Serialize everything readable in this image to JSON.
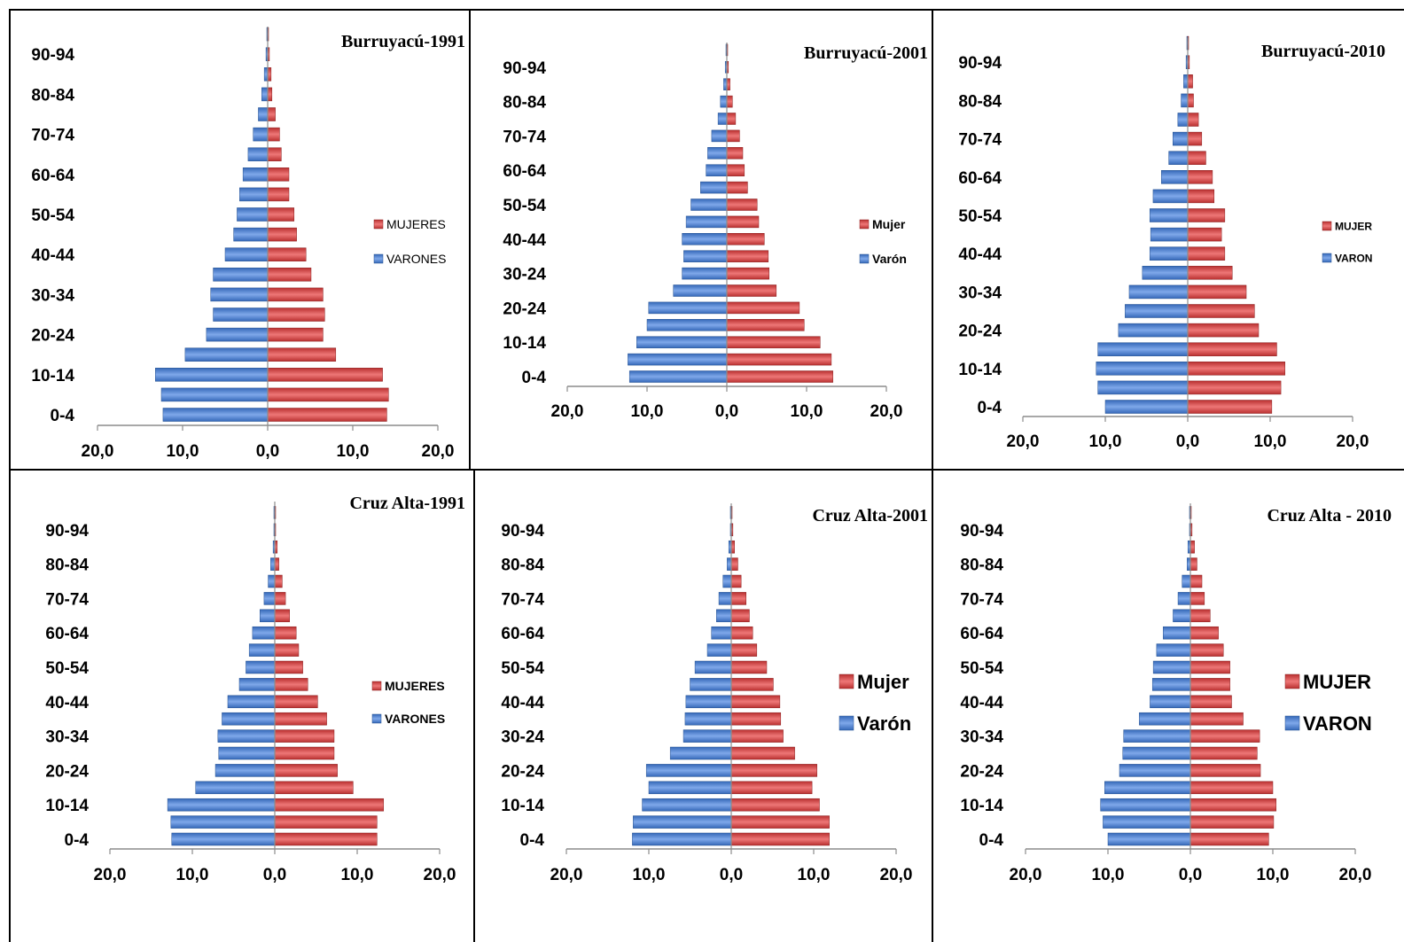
{
  "colors": {
    "male": "#4a7fd0",
    "female": "#d84b4b",
    "axis": "#8c8c8c",
    "frame": "#000000"
  },
  "chart_data": [
    {
      "type": "bar",
      "title": "Burruyacú-1991",
      "categories": [
        "0-4",
        "5-9",
        "10-14",
        "15-19",
        "20-24",
        "25-29",
        "30-34",
        "35-39",
        "40-44",
        "45-49",
        "50-54",
        "55-59",
        "60-64",
        "65-69",
        "70-74",
        "75-79",
        "80-84",
        "85-89",
        "90-94",
        "95+"
      ],
      "tick_labels": [
        "0-4",
        "10-14",
        "20-24",
        "30-34",
        "40-44",
        "50-54",
        "60-64",
        "70-74",
        "80-84",
        "90-94"
      ],
      "x_tick_labels": [
        "20,0",
        "10,0",
        "0,0",
        "10,0",
        "20,0"
      ],
      "xlim": [
        -20,
        20
      ],
      "legend_position": "right",
      "series": [
        {
          "name": "MUJERES",
          "values": [
            14.0,
            14.2,
            13.5,
            8.0,
            6.5,
            6.7,
            6.5,
            5.1,
            4.5,
            3.4,
            3.1,
            2.5,
            2.5,
            1.6,
            1.4,
            0.9,
            0.5,
            0.4,
            0.2,
            0.1
          ]
        },
        {
          "name": "VARONES",
          "values": [
            -12.3,
            -12.5,
            -13.2,
            -9.7,
            -7.2,
            -6.4,
            -6.7,
            -6.4,
            -5.0,
            -4.0,
            -3.6,
            -3.3,
            -2.9,
            -2.3,
            -1.7,
            -1.1,
            -0.7,
            -0.4,
            -0.2,
            -0.1
          ]
        }
      ]
    },
    {
      "type": "bar",
      "title": "Burruyacú-2001",
      "categories": [
        "0-4",
        "5-9",
        "10-14",
        "15-19",
        "20-24",
        "25-29",
        "30-24",
        "35-39",
        "40-44",
        "45-49",
        "50-54",
        "55-59",
        "60-64",
        "65-69",
        "70-74",
        "75-79",
        "80-84",
        "85-89",
        "90-94",
        "95+"
      ],
      "tick_labels": [
        "0-4",
        "10-14",
        "20-24",
        "30-24",
        "40-44",
        "50-54",
        "60-64",
        "70-74",
        "80-84",
        "90-94"
      ],
      "x_tick_labels": [
        "20,0",
        "10,0",
        "0,0",
        "10,0",
        "20,0"
      ],
      "xlim": [
        -20,
        20
      ],
      "legend_position": "right",
      "series": [
        {
          "name": "Mujer",
          "values": [
            13.3,
            13.1,
            11.7,
            9.7,
            9.1,
            6.2,
            5.3,
            5.2,
            4.7,
            4.0,
            3.8,
            2.6,
            2.2,
            2.0,
            1.6,
            1.1,
            0.7,
            0.4,
            0.2,
            0.1
          ]
        },
        {
          "name": "Varón",
          "values": [
            -12.2,
            -12.4,
            -11.3,
            -10.0,
            -9.8,
            -6.7,
            -5.6,
            -5.4,
            -5.6,
            -5.1,
            -4.5,
            -3.3,
            -2.6,
            -2.4,
            -1.9,
            -1.1,
            -0.8,
            -0.4,
            -0.2,
            -0.1
          ]
        }
      ]
    },
    {
      "type": "bar",
      "title": "Burruyacú-2010",
      "categories": [
        "0-4",
        "5-9",
        "10-14",
        "15-19",
        "20-24",
        "25-29",
        "30-34",
        "35-39",
        "40-44",
        "45-49",
        "50-54",
        "55-59",
        "60-64",
        "65-69",
        "70-74",
        "75-79",
        "80-84",
        "85-89",
        "90-94",
        "95+"
      ],
      "tick_labels": [
        "0-4",
        "10-14",
        "20-24",
        "30-34",
        "40-44",
        "50-54",
        "60-64",
        "70-74",
        "80-84",
        "90-94"
      ],
      "x_tick_labels": [
        "20,0",
        "10,0",
        "0,0",
        "10,0",
        "20,0"
      ],
      "xlim": [
        -20,
        20
      ],
      "legend_position": "right",
      "series": [
        {
          "name": "MUJER",
          "values": [
            10.2,
            11.3,
            11.8,
            10.8,
            8.6,
            8.1,
            7.1,
            5.4,
            4.5,
            4.1,
            4.5,
            3.2,
            3.0,
            2.2,
            1.7,
            1.3,
            0.7,
            0.6,
            0.2,
            0.1
          ]
        },
        {
          "name": "VARON",
          "values": [
            -10.0,
            -10.9,
            -11.1,
            -10.9,
            -8.4,
            -7.6,
            -7.1,
            -5.5,
            -4.6,
            -4.5,
            -4.6,
            -4.2,
            -3.2,
            -2.3,
            -1.8,
            -1.2,
            -0.8,
            -0.5,
            -0.2,
            -0.1
          ]
        }
      ]
    },
    {
      "type": "bar",
      "title": "Cruz Alta-1991",
      "categories": [
        "0-4",
        "5-9",
        "10-14",
        "15-19",
        "20-24",
        "25-29",
        "30-34",
        "35-39",
        "40-44",
        "45-49",
        "50-54",
        "55-59",
        "60-64",
        "65-69",
        "70-74",
        "75-79",
        "80-84",
        "85-89",
        "90-94",
        "95+"
      ],
      "tick_labels": [
        "0-4",
        "10-14",
        "20-24",
        "30-34",
        "40-44",
        "50-54",
        "60-64",
        "70-74",
        "80-84",
        "90-94"
      ],
      "x_tick_labels": [
        "20,0",
        "10,0",
        "0,0",
        "10,0",
        "20,0"
      ],
      "xlim": [
        -20,
        20
      ],
      "legend_position": "right",
      "series": [
        {
          "name": "MUJERES",
          "values": [
            12.4,
            12.4,
            13.2,
            9.5,
            7.6,
            7.2,
            7.2,
            6.3,
            5.2,
            4.0,
            3.4,
            2.9,
            2.6,
            1.8,
            1.3,
            0.9,
            0.5,
            0.3,
            0.1,
            0.1
          ]
        },
        {
          "name": "VARONES",
          "values": [
            -12.5,
            -12.6,
            -13.0,
            -9.6,
            -7.2,
            -6.8,
            -6.9,
            -6.4,
            -5.7,
            -4.3,
            -3.5,
            -3.1,
            -2.7,
            -1.8,
            -1.3,
            -0.8,
            -0.5,
            -0.2,
            -0.1,
            -0.1
          ]
        }
      ]
    },
    {
      "type": "bar",
      "title": "Cruz Alta-2001",
      "categories": [
        "0-4",
        "5-9",
        "10-14",
        "15-19",
        "20-24",
        "25-29",
        "30-24",
        "35-39",
        "40-44",
        "45-49",
        "50-54",
        "55-59",
        "60-64",
        "65-69",
        "70-74",
        "75-79",
        "80-84",
        "85-89",
        "90-94",
        "95+"
      ],
      "tick_labels": [
        "0-4",
        "10-14",
        "20-24",
        "30-24",
        "40-44",
        "50-54",
        "60-64",
        "70-74",
        "80-84",
        "90-94"
      ],
      "x_tick_labels": [
        "20,0",
        "10,0",
        "0,0",
        "10,0",
        "20,0"
      ],
      "xlim": [
        -20,
        20
      ],
      "legend_position": "right",
      "series": [
        {
          "name": "Mujer",
          "values": [
            11.9,
            11.9,
            10.7,
            9.8,
            10.4,
            7.7,
            6.3,
            6.0,
            5.9,
            5.1,
            4.3,
            3.1,
            2.6,
            2.2,
            1.8,
            1.2,
            0.8,
            0.4,
            0.2,
            0.1
          ]
        },
        {
          "name": "Varón",
          "values": [
            -12.0,
            -11.9,
            -10.8,
            -10.0,
            -10.3,
            -7.4,
            -5.8,
            -5.6,
            -5.5,
            -5.0,
            -4.4,
            -2.9,
            -2.4,
            -1.8,
            -1.5,
            -1.0,
            -0.5,
            -0.3,
            -0.1,
            -0.1
          ]
        }
      ]
    },
    {
      "type": "bar",
      "title": "Cruz Alta - 2010",
      "categories": [
        "0-4",
        "5-9",
        "10-14",
        "15-19",
        "20-24",
        "25-29",
        "30-34",
        "35-39",
        "40-44",
        "45-49",
        "50-54",
        "55-59",
        "60-64",
        "65-69",
        "70-74",
        "75-79",
        "80-84",
        "85-89",
        "90-94",
        "95+"
      ],
      "tick_labels": [
        "0-4",
        "10-14",
        "20-24",
        "30-34",
        "40-44",
        "50-54",
        "60-64",
        "70-74",
        "80-84",
        "90-94"
      ],
      "x_tick_labels": [
        "20,0",
        "10,0",
        "0,0",
        "10,0",
        "20,0"
      ],
      "xlim": [
        -20,
        20
      ],
      "legend_position": "right",
      "series": [
        {
          "name": "MUJER",
          "values": [
            9.5,
            10.1,
            10.4,
            10.0,
            8.5,
            8.1,
            8.4,
            6.4,
            5.0,
            4.8,
            4.8,
            4.0,
            3.4,
            2.4,
            1.7,
            1.4,
            0.8,
            0.5,
            0.2,
            0.1
          ]
        },
        {
          "name": "VARON",
          "values": [
            -10.0,
            -10.6,
            -10.9,
            -10.4,
            -8.6,
            -8.2,
            -8.1,
            -6.2,
            -4.9,
            -4.6,
            -4.5,
            -4.1,
            -3.3,
            -2.1,
            -1.5,
            -1.0,
            -0.4,
            -0.3,
            -0.1,
            -0.1
          ]
        }
      ]
    }
  ]
}
